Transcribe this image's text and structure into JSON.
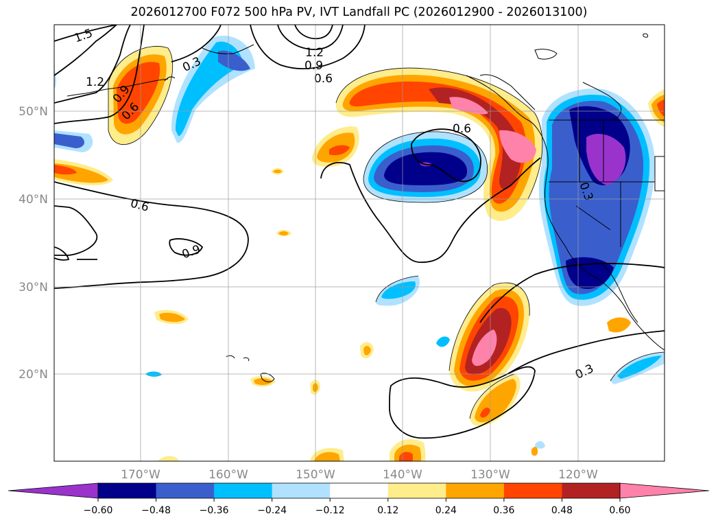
{
  "title": "2026012700 F072 500 hPa PV, IVT Landfall PC (2026012900 - 2026013100)",
  "latitude_labels": [
    "50°N",
    "40°N",
    "30°N",
    "20°N"
  ],
  "longitude_labels": [
    "170°W",
    "160°W",
    "150°W",
    "140°W",
    "130°W",
    "120°W"
  ],
  "contour_labels": [
    "1.5",
    "1.2",
    "0.9",
    "0.6",
    "0.3",
    "1.2",
    "0.9",
    "0.6",
    "0.6",
    "0.6",
    "0.9",
    "0.3",
    "0.3"
  ],
  "colorbar": {
    "ticks": [
      "−0.60",
      "−0.48",
      "−0.36",
      "−0.24",
      "−0.12",
      "0.12",
      "0.24",
      "0.36",
      "0.48",
      "0.60"
    ],
    "colors": {
      "under": "#9933cc",
      "bins": [
        "#9933cc",
        "#00008b",
        "#3a5fcd",
        "#00bfff",
        "#b0e2ff",
        "#ffffff",
        "#ffec8b",
        "#ffa500",
        "#ff4500",
        "#b22222",
        "#ff82ab"
      ],
      "over": "#ff82ab"
    }
  },
  "colors": {
    "pos_light": "#ffec8b",
    "pos_orange": "#ffa500",
    "pos_red": "#ff4500",
    "pos_dark": "#b22222",
    "pos_pink": "#ff82ab",
    "neg_light": "#b0e2ff",
    "neg_cyan": "#00bfff",
    "neg_blue": "#3a5fcd",
    "neg_navy": "#00008b",
    "neg_purple": "#9933cc"
  }
}
